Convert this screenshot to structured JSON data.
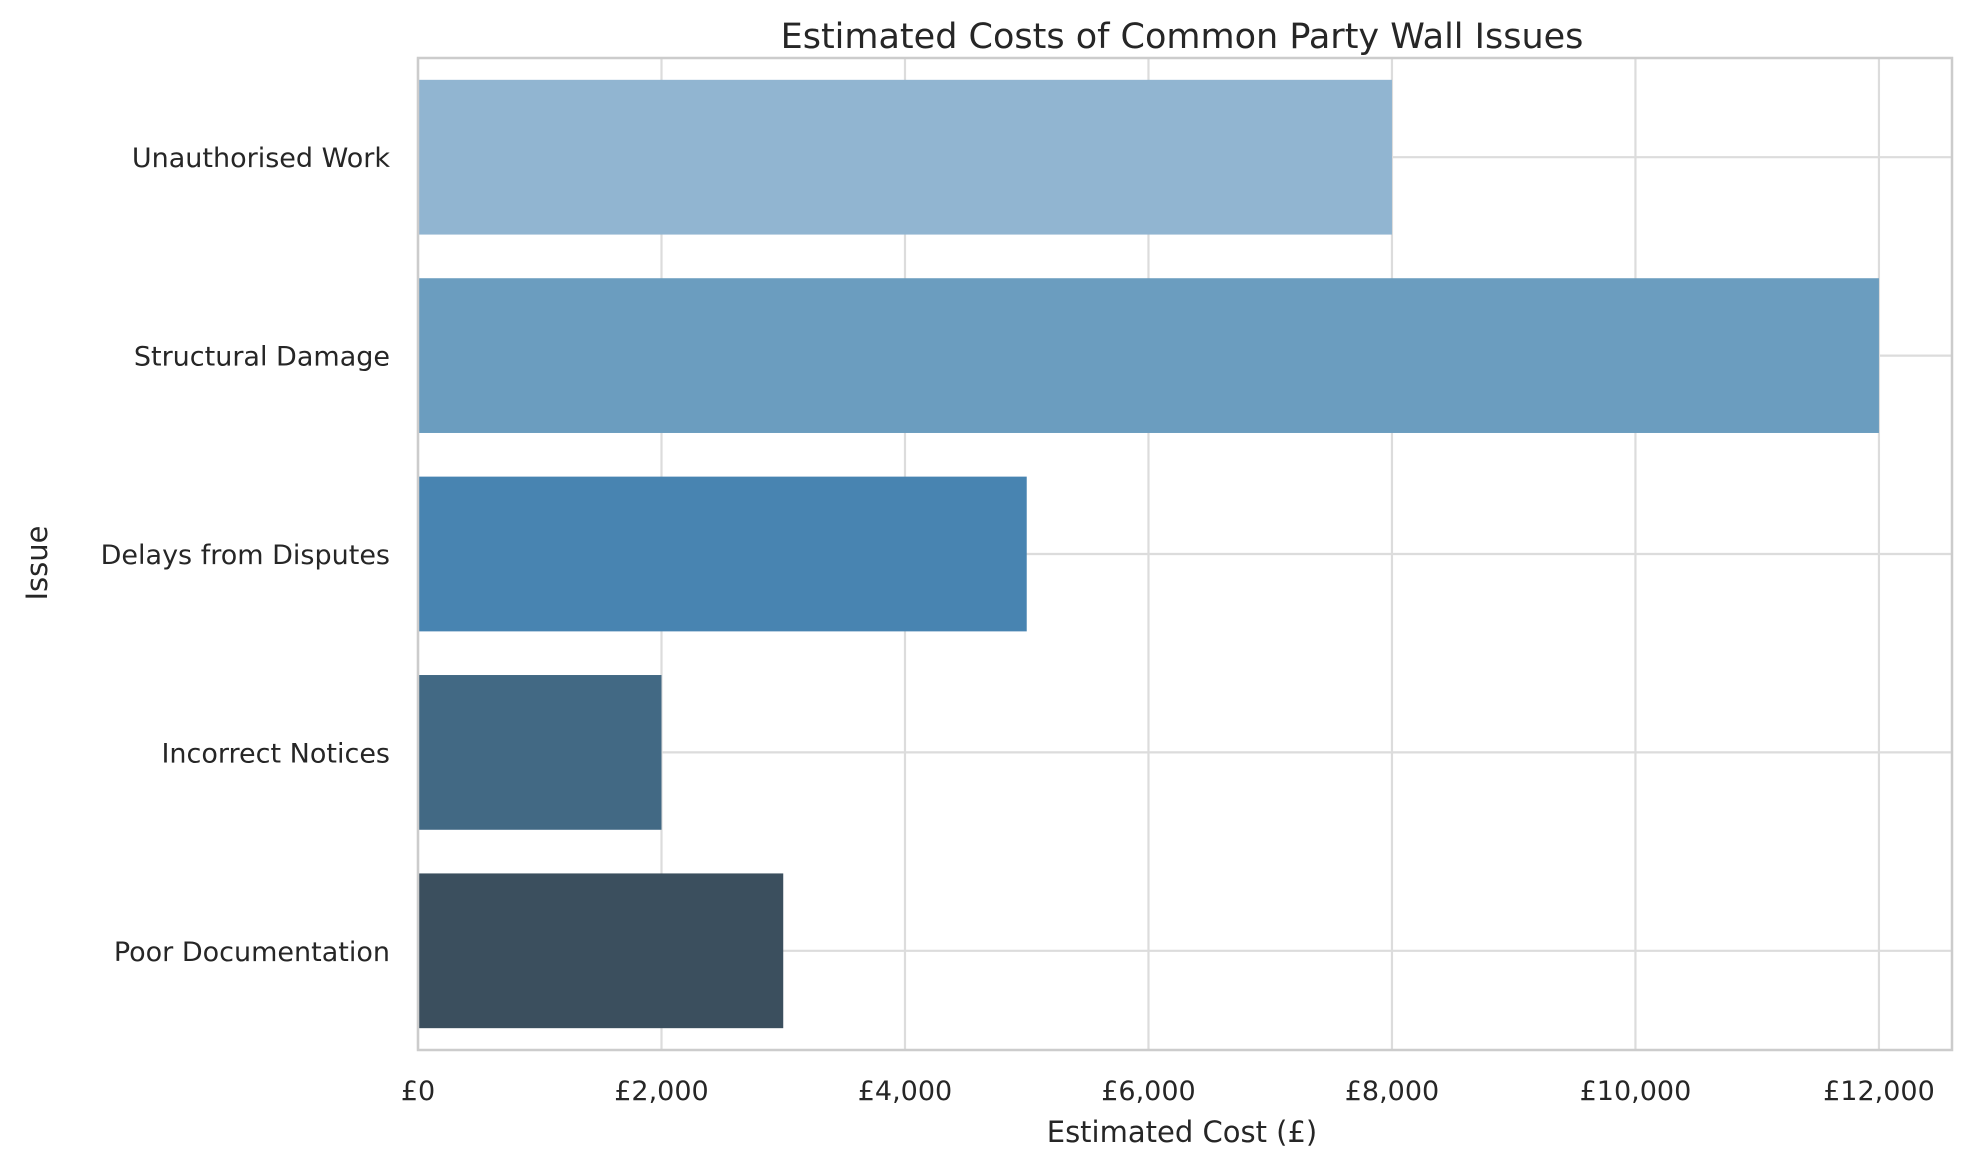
{
  "chart_data": {
    "type": "bar",
    "orientation": "horizontal",
    "title": "Estimated Costs of Common Party Wall Issues",
    "xlabel": "Estimated Cost (£)",
    "ylabel": "Issue",
    "categories": [
      "Unauthorised Work",
      "Structural Damage",
      "Delays from Disputes",
      "Incorrect Notices",
      "Poor Documentation"
    ],
    "values": [
      8000,
      12000,
      5000,
      2000,
      3000
    ],
    "colors": [
      "#91b5d1",
      "#6b9dbf",
      "#4884b1",
      "#426984",
      "#3b4f5e"
    ],
    "xlim": [
      0,
      12600
    ],
    "xticks": [
      0,
      2000,
      4000,
      6000,
      8000,
      10000,
      12000
    ],
    "xtick_labels": [
      "£0",
      "£2,000",
      "£4,000",
      "£6,000",
      "£8,000",
      "£10,000",
      "£12,000"
    ],
    "grid": true,
    "legend": "none"
  }
}
